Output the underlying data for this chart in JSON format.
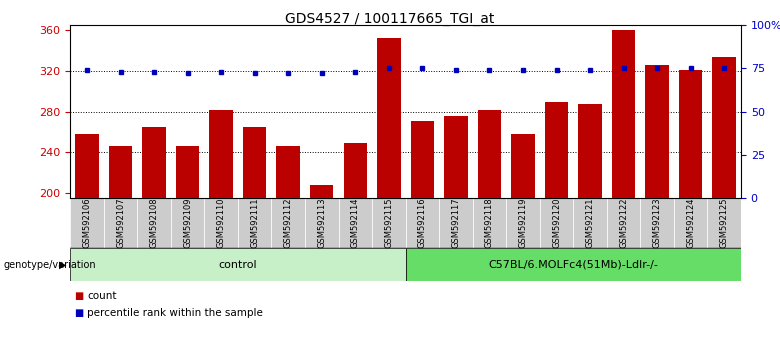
{
  "title": "GDS4527 / 100117665_TGI_at",
  "categories": [
    "GSM592106",
    "GSM592107",
    "GSM592108",
    "GSM592109",
    "GSM592110",
    "GSM592111",
    "GSM592112",
    "GSM592113",
    "GSM592114",
    "GSM592115",
    "GSM592116",
    "GSM592117",
    "GSM592118",
    "GSM592119",
    "GSM592120",
    "GSM592121",
    "GSM592122",
    "GSM592123",
    "GSM592124",
    "GSM592125"
  ],
  "counts": [
    258,
    246,
    265,
    246,
    281,
    265,
    246,
    208,
    249,
    352,
    271,
    276,
    281,
    258,
    289,
    287,
    360,
    326,
    321,
    333
  ],
  "percentile_ranks": [
    74,
    73,
    73,
    72,
    73,
    72,
    72,
    72,
    73,
    75,
    75,
    74,
    74,
    74,
    74,
    74,
    75,
    75,
    75,
    75
  ],
  "bar_color": "#bb0000",
  "dot_color": "#0000bb",
  "ylim_left": [
    195,
    365
  ],
  "ylim_right": [
    0,
    100
  ],
  "yticks_left": [
    200,
    240,
    280,
    320,
    360
  ],
  "yticks_right": [
    0,
    25,
    50,
    75,
    100
  ],
  "grid_values": [
    240,
    280,
    320
  ],
  "groups": [
    {
      "label": "control",
      "start": 0,
      "end": 10,
      "color": "#c8f0c8"
    },
    {
      "label": "C57BL/6.MOLFc4(51Mb)-Ldlr-/-",
      "start": 10,
      "end": 20,
      "color": "#66dd66"
    }
  ],
  "group_label_prefix": "genotype/variation",
  "legend_count_label": "count",
  "legend_pct_label": "percentile rank within the sample",
  "bar_color_legend": "#bb0000",
  "dot_color_legend": "#0000bb",
  "bar_width": 0.7,
  "background_color": "#ffffff",
  "plot_bg_color": "#ffffff",
  "tick_color_left": "#cc0000",
  "tick_color_right": "#0000cc",
  "title_fontsize": 10,
  "axis_fontsize": 8,
  "xtick_fontsize": 6,
  "group_fontsize": 8,
  "legend_fontsize": 7.5,
  "gray_bg": "#cccccc"
}
